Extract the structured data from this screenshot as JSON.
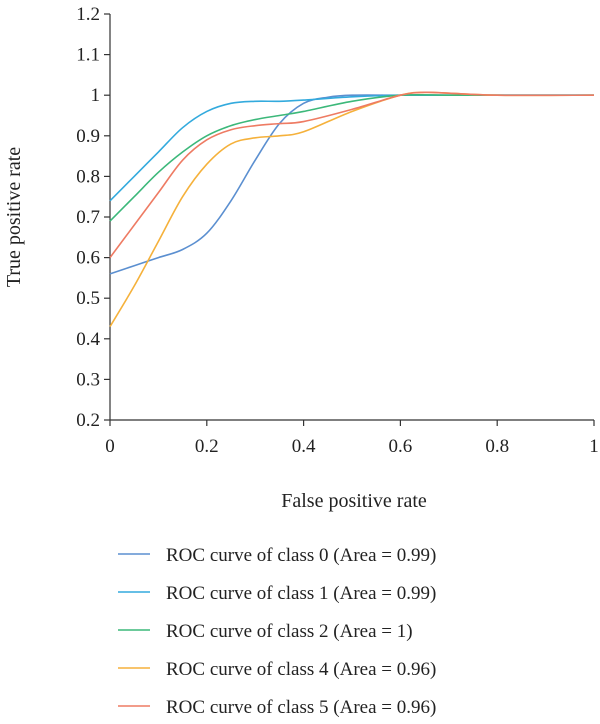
{
  "chart_data": {
    "type": "line",
    "xlabel": "False positive rate",
    "ylabel": "True positive rate",
    "xlim": [
      0,
      1
    ],
    "ylim": [
      0.2,
      1.2
    ],
    "xticks": [
      0,
      0.2,
      0.4,
      0.6,
      0.8,
      1
    ],
    "xtick_labels": [
      "0",
      "0.2",
      "0.4",
      "0.6",
      "0.8",
      "1"
    ],
    "yticks": [
      0.2,
      0.3,
      0.4,
      0.5,
      0.6,
      0.7,
      0.8,
      0.9,
      1.0,
      1.1,
      1.2
    ],
    "ytick_labels": [
      "0.2",
      "0.3",
      "0.4",
      "0.5",
      "0.6",
      "0.7",
      "0.8",
      "0.9",
      "1",
      "1.1",
      "1.2"
    ],
    "grid": false,
    "legend_position": "bottom",
    "series": [
      {
        "name": "ROC curve of class 0 (Area = 0.99)",
        "color": "#5b8fd0",
        "x": [
          0,
          0.05,
          0.1,
          0.15,
          0.2,
          0.25,
          0.3,
          0.35,
          0.4,
          0.45,
          0.5,
          0.6,
          0.7,
          0.8,
          1.0
        ],
        "y": [
          0.56,
          0.58,
          0.6,
          0.62,
          0.66,
          0.74,
          0.84,
          0.93,
          0.98,
          0.995,
          1.0,
          1.0,
          1.0,
          1.0,
          1.0
        ]
      },
      {
        "name": "ROC curve of class 1 (Area = 0.99)",
        "color": "#33aadd",
        "x": [
          0,
          0.05,
          0.1,
          0.15,
          0.2,
          0.25,
          0.3,
          0.35,
          0.4,
          0.5,
          0.6,
          0.7,
          0.8,
          1.0
        ],
        "y": [
          0.74,
          0.8,
          0.86,
          0.92,
          0.96,
          0.98,
          0.985,
          0.985,
          0.988,
          0.996,
          1.0,
          1.0,
          1.0,
          1.0
        ]
      },
      {
        "name": "ROC curve of class 2 (Area = 1)",
        "color": "#3cb87a",
        "x": [
          0,
          0.05,
          0.1,
          0.15,
          0.2,
          0.25,
          0.3,
          0.35,
          0.4,
          0.5,
          0.6,
          0.7,
          0.8,
          1.0
        ],
        "y": [
          0.69,
          0.75,
          0.81,
          0.86,
          0.9,
          0.925,
          0.94,
          0.95,
          0.96,
          0.985,
          1.0,
          1.0,
          1.0,
          1.0
        ]
      },
      {
        "name": "ROC curve of class 4 (Area = 0.96)",
        "color": "#f5b13b",
        "x": [
          0,
          0.05,
          0.1,
          0.15,
          0.2,
          0.25,
          0.3,
          0.35,
          0.4,
          0.5,
          0.6,
          0.65,
          0.7,
          0.8,
          1.0
        ],
        "y": [
          0.43,
          0.53,
          0.64,
          0.75,
          0.83,
          0.88,
          0.895,
          0.9,
          0.91,
          0.96,
          1.0,
          1.007,
          1.005,
          1.0,
          1.0
        ]
      },
      {
        "name": "ROC curve of class 5 (Area = 0.96)",
        "color": "#ee7b63",
        "x": [
          0,
          0.05,
          0.1,
          0.15,
          0.2,
          0.25,
          0.3,
          0.35,
          0.4,
          0.5,
          0.6,
          0.65,
          0.7,
          0.8,
          1.0
        ],
        "y": [
          0.6,
          0.68,
          0.76,
          0.84,
          0.89,
          0.915,
          0.925,
          0.93,
          0.935,
          0.965,
          1.0,
          1.007,
          1.005,
          1.0,
          1.0
        ]
      }
    ]
  }
}
